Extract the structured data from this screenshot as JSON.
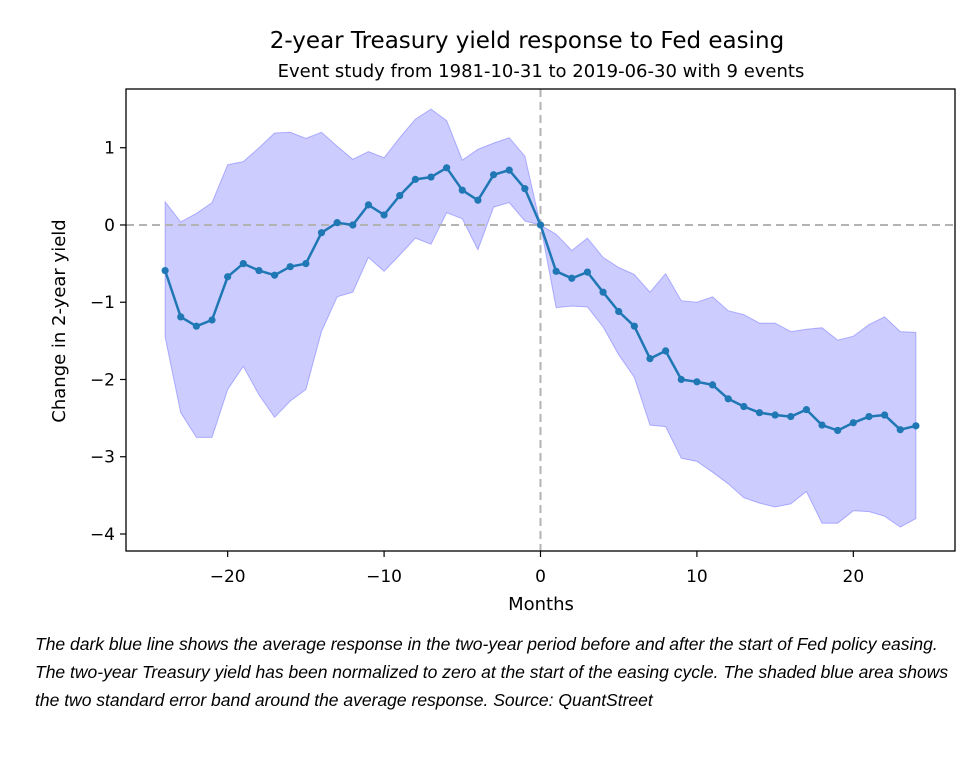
{
  "chart_data": {
    "type": "line",
    "title": "2-year Treasury yield response to Fed easing",
    "subtitle": "Event study from 1981-10-31 to 2019-06-30 with 9 events",
    "xlabel": "Months",
    "ylabel": "Change in 2-year yield",
    "xlim": [
      -26.5,
      26.5
    ],
    "ylim": [
      -4.22,
      1.76
    ],
    "xticks": [
      -20,
      -10,
      0,
      10,
      20
    ],
    "xtick_labels": [
      "−20",
      "−10",
      "0",
      "10",
      "20"
    ],
    "yticks": [
      1,
      0,
      -1,
      -2,
      -3,
      -4
    ],
    "ytick_labels": [
      "1",
      "0",
      "−1",
      "−2",
      "−3",
      "−4"
    ],
    "grid": false,
    "legend": "none",
    "reference_lines": {
      "x": 0,
      "y": 0,
      "style": "dashed",
      "color": "#b3b3b3"
    },
    "x": [
      -24,
      -23,
      -22,
      -21,
      -20,
      -19,
      -18,
      -17,
      -16,
      -15,
      -14,
      -13,
      -12,
      -11,
      -10,
      -9,
      -8,
      -7,
      -6,
      -5,
      -4,
      -3,
      -2,
      -1,
      0,
      1,
      2,
      3,
      4,
      5,
      6,
      7,
      8,
      9,
      10,
      11,
      12,
      13,
      14,
      15,
      16,
      17,
      18,
      19,
      20,
      21,
      22,
      23,
      24
    ],
    "series": [
      {
        "role": "mean",
        "color": "#1f77b4",
        "values": [
          -0.59,
          -1.19,
          -1.31,
          -1.23,
          -0.67,
          -0.5,
          -0.59,
          -0.65,
          -0.54,
          -0.5,
          -0.1,
          0.03,
          0.0,
          0.26,
          0.13,
          0.38,
          0.59,
          0.62,
          0.74,
          0.45,
          0.32,
          0.65,
          0.71,
          0.47,
          0.0,
          -0.6,
          -0.69,
          -0.61,
          -0.87,
          -1.12,
          -1.31,
          -1.73,
          -1.63,
          -2.0,
          -2.03,
          -2.07,
          -2.25,
          -2.35,
          -2.43,
          -2.46,
          -2.48,
          -2.39,
          -2.59,
          -2.66,
          -2.56,
          -2.48,
          -2.46,
          -2.65,
          -2.6
        ]
      },
      {
        "role": "band_upper",
        "color": "#0000ff",
        "values": [
          0.3,
          0.04,
          0.15,
          0.29,
          0.78,
          0.82,
          1.0,
          1.19,
          1.2,
          1.12,
          1.2,
          1.02,
          0.85,
          0.95,
          0.87,
          1.13,
          1.37,
          1.5,
          1.35,
          0.84,
          0.98,
          1.06,
          1.13,
          0.89,
          0.0,
          -0.12,
          -0.33,
          -0.17,
          -0.42,
          -0.55,
          -0.64,
          -0.87,
          -0.63,
          -0.98,
          -1.0,
          -0.93,
          -1.11,
          -1.16,
          -1.27,
          -1.27,
          -1.38,
          -1.35,
          -1.33,
          -1.49,
          -1.44,
          -1.29,
          -1.19,
          -1.38,
          -1.39
        ]
      },
      {
        "role": "band_lower",
        "color": "#0000ff",
        "values": [
          -1.45,
          -2.43,
          -2.75,
          -2.75,
          -2.13,
          -1.83,
          -2.2,
          -2.49,
          -2.28,
          -2.13,
          -1.38,
          -0.93,
          -0.87,
          -0.42,
          -0.6,
          -0.39,
          -0.17,
          -0.25,
          0.16,
          0.08,
          -0.32,
          0.23,
          0.29,
          0.05,
          0.0,
          -1.07,
          -1.05,
          -1.06,
          -1.32,
          -1.68,
          -1.97,
          -2.59,
          -2.61,
          -3.02,
          -3.06,
          -3.2,
          -3.35,
          -3.53,
          -3.6,
          -3.65,
          -3.61,
          -3.45,
          -3.86,
          -3.86,
          -3.7,
          -3.71,
          -3.77,
          -3.91,
          -3.8
        ]
      }
    ]
  },
  "caption": "The dark blue line shows the average response in the two-year period before and after the start of Fed policy easing. The two-year Treasury yield has been normalized to zero at the start of the easing cycle. The shaded blue area shows the two standard error band around the average response. Source: QuantStreet"
}
